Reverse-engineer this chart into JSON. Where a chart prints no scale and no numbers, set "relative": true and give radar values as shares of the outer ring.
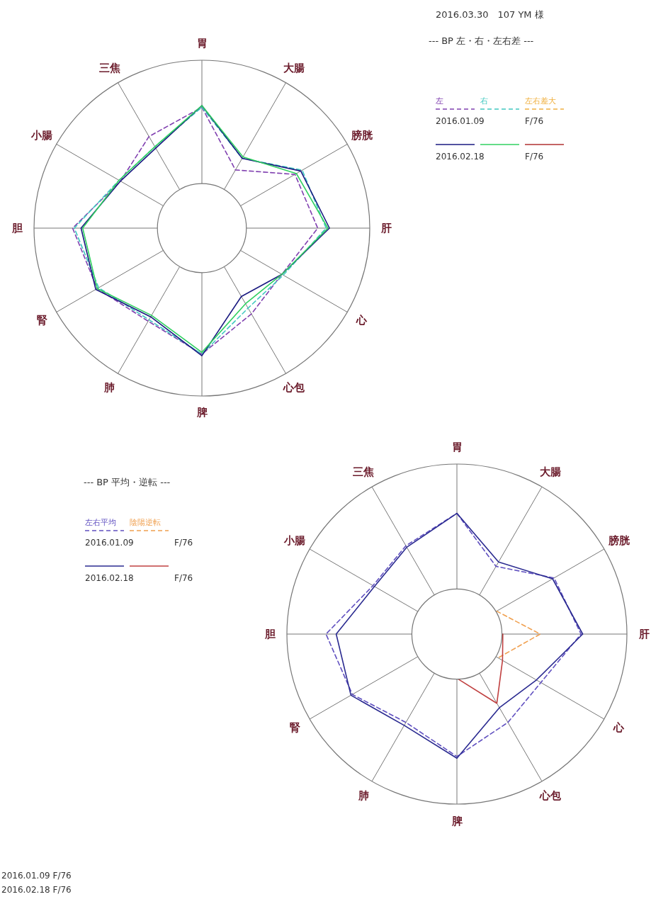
{
  "chart_data": [
    {
      "type": "radar",
      "title": "--- BP 左・右・左右差 ---",
      "annotations": [
        "2016.03.30　107 YM 様",
        "2016.01.09",
        "F/76",
        "2016.02.18",
        "F/76"
      ],
      "categories": [
        "胃",
        "大腸",
        "膀胱",
        "肝",
        "心",
        "心包",
        "脾",
        "肺",
        "腎",
        "胆",
        "小腸",
        "三焦"
      ],
      "relative": true,
      "grid": true,
      "legend": "top right",
      "series": [
        {
          "name": "左",
          "color": "#8040b0",
          "line_style": "dashed",
          "values": [
            0.72,
            0.4,
            0.64,
            0.69,
            0.55,
            0.59,
            0.75,
            0.64,
            0.72,
            0.77,
            0.56,
            0.63
          ]
        },
        {
          "name": "右",
          "color": "#40c8c0",
          "line_style": "dashed",
          "values": [
            0.72,
            0.48,
            0.69,
            0.74,
            0.56,
            0.55,
            0.75,
            0.63,
            0.71,
            0.76,
            0.57,
            0.56
          ]
        },
        {
          "color": "#1a1a80",
          "line_style": "solid",
          "values": [
            0.73,
            0.48,
            0.68,
            0.76,
            0.55,
            0.47,
            0.76,
            0.61,
            0.73,
            0.72,
            0.56,
            0.55
          ]
        },
        {
          "color": "#30d060",
          "line_style": "solid",
          "values": [
            0.73,
            0.49,
            0.65,
            0.75,
            0.55,
            0.52,
            0.74,
            0.6,
            0.72,
            0.71,
            0.57,
            0.56
          ]
        },
        {
          "name": "左右差大",
          "color": "#f0b040",
          "line_style": "dashed",
          "values": [
            null,
            null,
            null,
            null,
            null,
            null,
            null,
            null,
            null,
            null,
            null,
            null
          ]
        },
        {
          "color": "#b03030",
          "line_style": "solid",
          "values": [
            null,
            null,
            null,
            null,
            null,
            null,
            null,
            null,
            null,
            null,
            null,
            null
          ]
        }
      ]
    },
    {
      "type": "radar",
      "title": "--- BP 平均・逆転 ---",
      "annotations": [
        "2016.01.09",
        "F/76",
        "2016.02.18",
        "F/76",
        "2016.01.09 F/76",
        "2016.02.18 F/76"
      ],
      "categories": [
        "胃",
        "大腸",
        "膀胱",
        "肝",
        "心",
        "心包",
        "脾",
        "肺",
        "腎",
        "胆",
        "小腸",
        "三焦"
      ],
      "relative": true,
      "grid": true,
      "legend": "top left",
      "series": [
        {
          "name": "左右平均",
          "color": "#6050c0",
          "line_style": "dashed",
          "values": [
            0.71,
            0.46,
            0.66,
            0.73,
            0.57,
            0.6,
            0.72,
            0.6,
            0.71,
            0.77,
            0.57,
            0.6
          ]
        },
        {
          "name": "陰陽逆転",
          "color": "#f0a050",
          "line_style": "dashed",
          "values": [
            null,
            null,
            0.27,
            0.49,
            0.28,
            null,
            null,
            null,
            null,
            null,
            null,
            null
          ]
        },
        {
          "color": "#2a2a90",
          "line_style": "solid",
          "values": [
            0.71,
            0.49,
            0.65,
            0.74,
            0.54,
            0.5,
            0.73,
            0.62,
            0.72,
            0.71,
            0.56,
            0.59
          ]
        },
        {
          "color": "#c04040",
          "line_style": "solid",
          "values": [
            null,
            null,
            null,
            0.27,
            0.31,
            0.47,
            0.26,
            null,
            null,
            null,
            null,
            null
          ]
        }
      ]
    }
  ]
}
